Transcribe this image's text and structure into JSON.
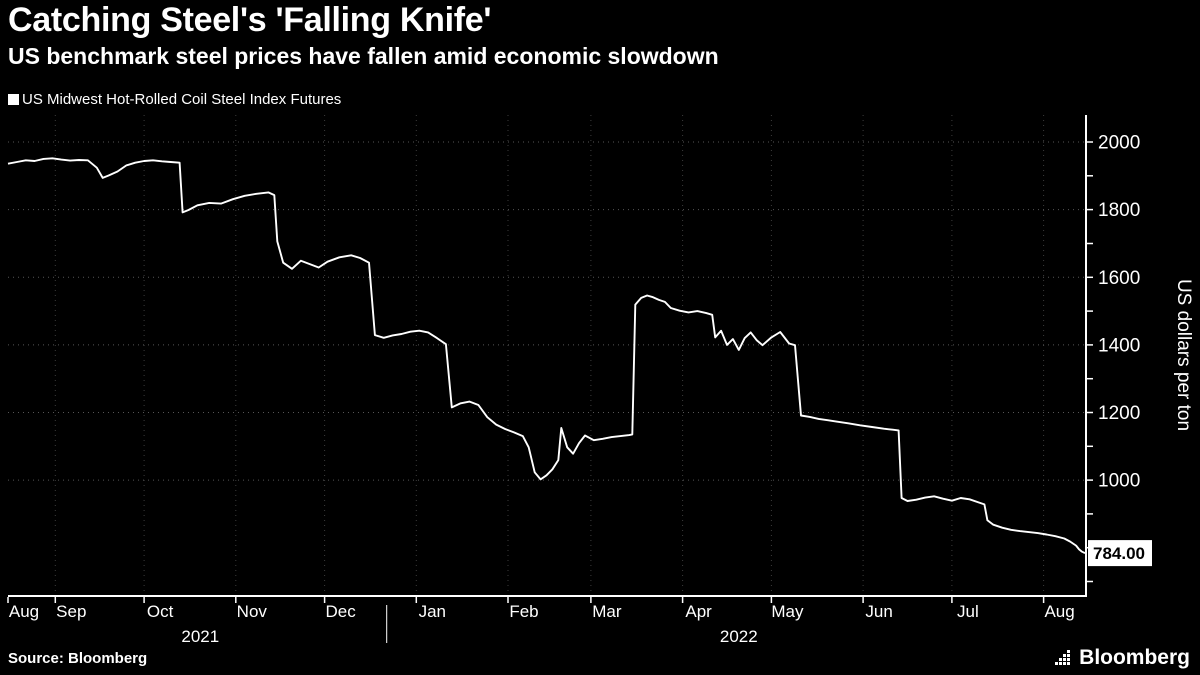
{
  "header": {
    "title": "Catching Steel's 'Falling Knife'",
    "subtitle": "US benchmark steel prices have fallen amid economic slowdown"
  },
  "legend": {
    "label": "US Midwest Hot-Rolled Coil Steel Index Futures"
  },
  "footer": {
    "source": "Source: Bloomberg",
    "logo": "Bloomberg"
  },
  "chart_data": {
    "type": "line",
    "title": "Catching Steel's 'Falling Knife'",
    "subtitle": "US benchmark steel prices have fallen amid economic slowdown",
    "xlabel": "",
    "ylabel": "US dollars per ton",
    "background_color": "#000000",
    "line_color": "#ffffff",
    "grid": {
      "h_values": [
        1000,
        1200,
        1400,
        1600,
        1800,
        2000
      ],
      "h_color": "#565656",
      "v_color": "#3c3c3c",
      "style": "dotted"
    },
    "x_axis": {
      "start_date": "2021-08-16",
      "end_date": "2022-08-15",
      "total_days": 364,
      "month_labels": [
        "Aug",
        "Sep",
        "Oct",
        "Nov",
        "Dec",
        "Jan",
        "Feb",
        "Mar",
        "Apr",
        "May",
        "Jun",
        "Jul",
        "Aug"
      ],
      "month_start_days": [
        0,
        16,
        46,
        77,
        107,
        138,
        169,
        197,
        228,
        258,
        289,
        319,
        350
      ],
      "year_labels": [
        {
          "label": "2021",
          "center_day": 65
        },
        {
          "label": "2022",
          "center_day": 247
        }
      ],
      "year_divider_day": 128
    },
    "y_axis": {
      "label": "US dollars per ton",
      "min": 660,
      "max": 2080,
      "tick_labels": [
        2000,
        1800,
        1600,
        1400,
        1200,
        1000
      ],
      "minor_ticks": [
        700,
        800,
        900,
        1000,
        1100,
        1200,
        1300,
        1400,
        1500,
        1600,
        1700,
        1800,
        1900,
        2000
      ],
      "last_value": 784,
      "last_value_label": "784.00"
    },
    "series": [
      {
        "name": "US Midwest Hot-Rolled Coil Steel Index Futures",
        "color": "#ffffff",
        "points": [
          [
            0,
            1936
          ],
          [
            3,
            1941
          ],
          [
            6,
            1946
          ],
          [
            9,
            1944
          ],
          [
            12,
            1950
          ],
          [
            15,
            1952
          ],
          [
            18,
            1948
          ],
          [
            21,
            1945
          ],
          [
            24,
            1947
          ],
          [
            27,
            1946
          ],
          [
            30,
            1924
          ],
          [
            32,
            1894
          ],
          [
            34,
            1901
          ],
          [
            37,
            1913
          ],
          [
            40,
            1931
          ],
          [
            43,
            1939
          ],
          [
            46,
            1944
          ],
          [
            49,
            1946
          ],
          [
            52,
            1943
          ],
          [
            55,
            1941
          ],
          [
            58,
            1939
          ],
          [
            59,
            1792
          ],
          [
            61,
            1799
          ],
          [
            64,
            1813
          ],
          [
            68,
            1820
          ],
          [
            72,
            1818
          ],
          [
            76,
            1831
          ],
          [
            80,
            1841
          ],
          [
            84,
            1847
          ],
          [
            88,
            1851
          ],
          [
            90,
            1843
          ],
          [
            91,
            1706
          ],
          [
            93,
            1643
          ],
          [
            96,
            1625
          ],
          [
            99,
            1649
          ],
          [
            102,
            1639
          ],
          [
            105,
            1629
          ],
          [
            108,
            1646
          ],
          [
            112,
            1659
          ],
          [
            116,
            1665
          ],
          [
            119,
            1657
          ],
          [
            122,
            1643
          ],
          [
            124,
            1429
          ],
          [
            127,
            1421
          ],
          [
            130,
            1428
          ],
          [
            133,
            1432
          ],
          [
            136,
            1439
          ],
          [
            139,
            1442
          ],
          [
            142,
            1437
          ],
          [
            145,
            1420
          ],
          [
            148,
            1402
          ],
          [
            150,
            1215
          ],
          [
            153,
            1227
          ],
          [
            156,
            1232
          ],
          [
            159,
            1222
          ],
          [
            162,
            1186
          ],
          [
            165,
            1164
          ],
          [
            168,
            1151
          ],
          [
            171,
            1141
          ],
          [
            174,
            1130
          ],
          [
            176,
            1097
          ],
          [
            178,
            1023
          ],
          [
            180,
            1002
          ],
          [
            182,
            1014
          ],
          [
            184,
            1032
          ],
          [
            186,
            1059
          ],
          [
            187,
            1154
          ],
          [
            189,
            1097
          ],
          [
            191,
            1078
          ],
          [
            193,
            1109
          ],
          [
            195,
            1132
          ],
          [
            198,
            1118
          ],
          [
            201,
            1122
          ],
          [
            204,
            1127
          ],
          [
            207,
            1130
          ],
          [
            210,
            1133
          ],
          [
            211,
            1135
          ],
          [
            212,
            1519
          ],
          [
            214,
            1539
          ],
          [
            216,
            1546
          ],
          [
            218,
            1541
          ],
          [
            220,
            1533
          ],
          [
            222,
            1527
          ],
          [
            224,
            1509
          ],
          [
            227,
            1501
          ],
          [
            230,
            1496
          ],
          [
            233,
            1500
          ],
          [
            236,
            1494
          ],
          [
            238,
            1489
          ],
          [
            239,
            1422
          ],
          [
            241,
            1442
          ],
          [
            243,
            1400
          ],
          [
            245,
            1417
          ],
          [
            247,
            1385
          ],
          [
            249,
            1420
          ],
          [
            251,
            1437
          ],
          [
            253,
            1414
          ],
          [
            255,
            1399
          ],
          [
            258,
            1422
          ],
          [
            261,
            1438
          ],
          [
            264,
            1404
          ],
          [
            266,
            1399
          ],
          [
            268,
            1191
          ],
          [
            271,
            1187
          ],
          [
            274,
            1181
          ],
          [
            277,
            1177
          ],
          [
            280,
            1173
          ],
          [
            284,
            1168
          ],
          [
            288,
            1162
          ],
          [
            292,
            1157
          ],
          [
            296,
            1152
          ],
          [
            299,
            1149
          ],
          [
            301,
            1147
          ],
          [
            302,
            947
          ],
          [
            304,
            938
          ],
          [
            307,
            942
          ],
          [
            310,
            948
          ],
          [
            313,
            952
          ],
          [
            316,
            945
          ],
          [
            319,
            939
          ],
          [
            322,
            947
          ],
          [
            325,
            943
          ],
          [
            328,
            934
          ],
          [
            330,
            928
          ],
          [
            331,
            881
          ],
          [
            333,
            868
          ],
          [
            336,
            859
          ],
          [
            339,
            853
          ],
          [
            342,
            849
          ],
          [
            345,
            846
          ],
          [
            348,
            843
          ],
          [
            351,
            839
          ],
          [
            354,
            834
          ],
          [
            357,
            827
          ],
          [
            359,
            818
          ],
          [
            361,
            806
          ],
          [
            362,
            795
          ],
          [
            363,
            788
          ],
          [
            364,
            784
          ]
        ]
      }
    ]
  }
}
